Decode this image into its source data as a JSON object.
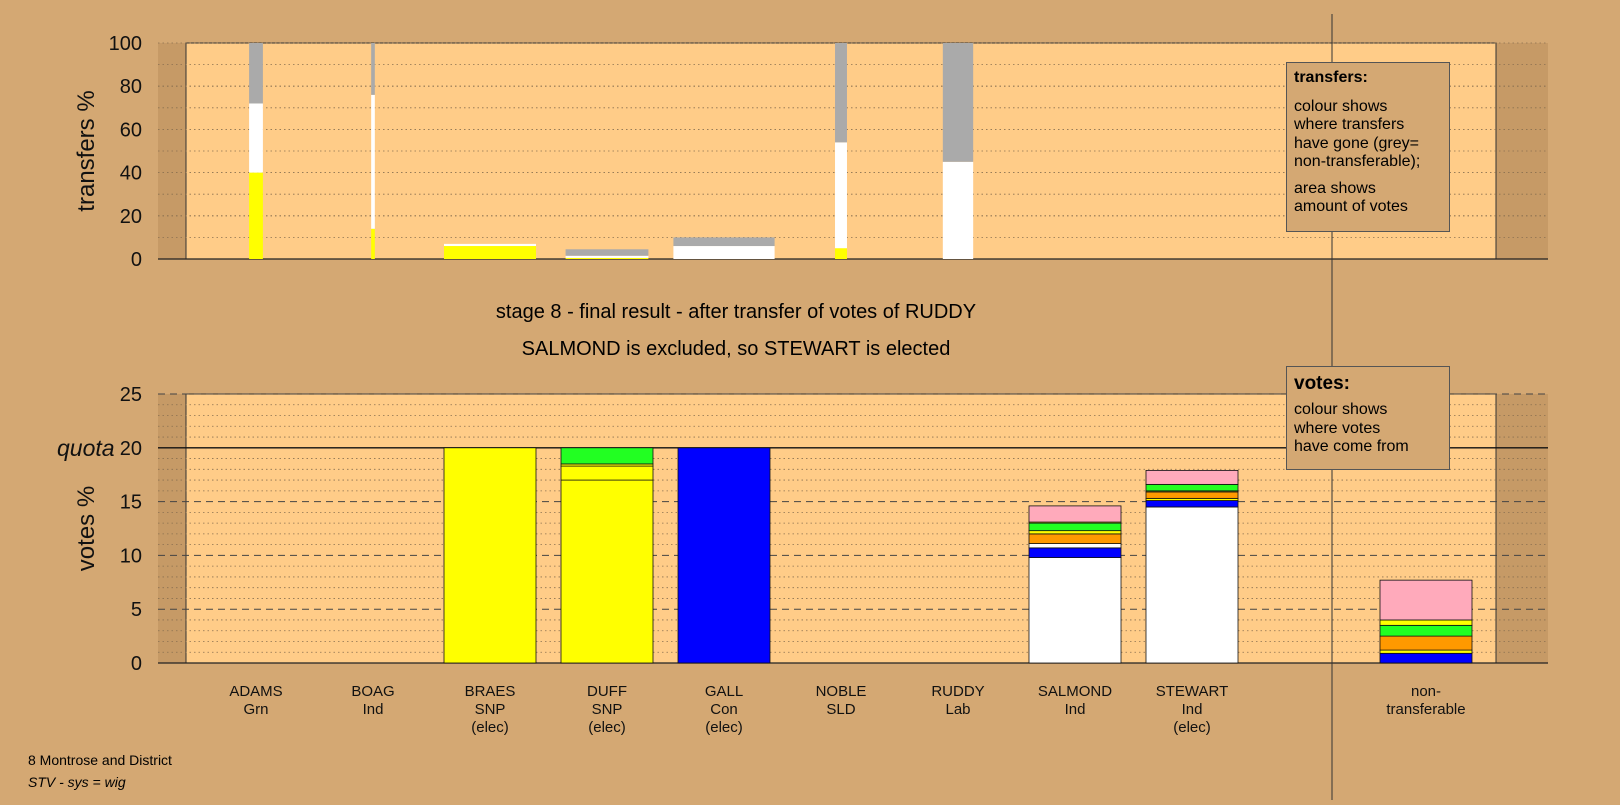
{
  "colors": {
    "background": "#d4a873",
    "panel": "#ffcc88",
    "SNP": "#ffff00",
    "Con": "#0000ff",
    "Grn": "#22ff22",
    "SLD": "#ff9900",
    "Lab": "#ffaabb",
    "Ind": "#ffffff",
    "non-transferable": "#aaaaaa"
  },
  "chart_data": [
    {
      "type": "bar",
      "name": "transfers",
      "ylabel": "transfers %",
      "ylim": [
        0,
        100
      ],
      "yticks": [
        0,
        20,
        40,
        60,
        80,
        100
      ],
      "grid": "dotted",
      "note": "bar width shows amount of votes",
      "columns": [
        {
          "candidate": "ADAMS",
          "width": 0.15,
          "segments": [
            {
              "party": "SNP",
              "value": 40
            },
            {
              "party": "Ind",
              "value": 32
            },
            {
              "party": "non-transferable",
              "value": 28
            }
          ]
        },
        {
          "candidate": "BOAG",
          "width": 0.04,
          "segments": [
            {
              "party": "SNP",
              "value": 14
            },
            {
              "party": "Ind",
              "value": 62
            },
            {
              "party": "non-transferable",
              "value": 24
            }
          ]
        },
        {
          "candidate": "BRAES",
          "width": 1.0,
          "segments": [
            {
              "party": "SNP",
              "value": 6
            },
            {
              "party": "Ind",
              "value": 1
            }
          ]
        },
        {
          "candidate": "DUFF",
          "width": 0.9,
          "segments": [
            {
              "party": "SNP",
              "value": 0.5
            },
            {
              "party": "Ind",
              "value": 1
            },
            {
              "party": "non-transferable",
              "value": 3
            }
          ]
        },
        {
          "candidate": "GALL",
          "width": 1.1,
          "segments": [
            {
              "party": "Ind",
              "value": 6
            },
            {
              "party": "non-transferable",
              "value": 4
            }
          ]
        },
        {
          "candidate": "NOBLE",
          "width": 0.13,
          "segments": [
            {
              "party": "SNP",
              "value": 5
            },
            {
              "party": "Ind",
              "value": 49
            },
            {
              "party": "non-transferable",
              "value": 46
            }
          ]
        },
        {
          "candidate": "RUDDY",
          "width": 0.33,
          "segments": [
            {
              "party": "Ind",
              "value": 45
            },
            {
              "party": "non-transferable",
              "value": 55
            }
          ]
        }
      ]
    },
    {
      "type": "bar",
      "name": "votes",
      "ylabel": "votes %",
      "ylim": [
        0,
        25
      ],
      "yticks": [
        0,
        5,
        10,
        15,
        20,
        25
      ],
      "quota": 20,
      "quota_label": "quota",
      "grid": "dotted",
      "columns": [
        {
          "candidate": "ADAMS",
          "party": "Grn",
          "elected": "",
          "segments": []
        },
        {
          "candidate": "BOAG",
          "party": "Ind",
          "elected": "",
          "segments": []
        },
        {
          "candidate": "BRAES",
          "party": "SNP",
          "elected": "(elec)",
          "segments": [
            {
              "party": "SNP",
              "value": 20
            }
          ]
        },
        {
          "candidate": "DUFF",
          "party": "SNP",
          "elected": "(elec)",
          "segments": [
            {
              "party": "SNP",
              "value": 17
            },
            {
              "party": "SNP",
              "value": 1.3
            },
            {
              "party": "SNP",
              "value": 0.2
            },
            {
              "party": "Grn",
              "value": 1.5
            }
          ]
        },
        {
          "candidate": "GALL",
          "party": "Con",
          "elected": "(elec)",
          "segments": [
            {
              "party": "Con",
              "value": 20
            }
          ]
        },
        {
          "candidate": "NOBLE",
          "party": "SLD",
          "elected": "",
          "segments": []
        },
        {
          "candidate": "RUDDY",
          "party": "Lab",
          "elected": "",
          "segments": []
        },
        {
          "candidate": "SALMOND",
          "party": "Ind",
          "elected": "",
          "segments": [
            {
              "party": "Ind",
              "value": 9.8
            },
            {
              "party": "Con",
              "value": 0.9
            },
            {
              "party": "Ind",
              "value": 0.4
            },
            {
              "party": "SLD",
              "value": 0.9
            },
            {
              "party": "SNP",
              "value": 0.3
            },
            {
              "party": "Grn",
              "value": 0.7
            },
            {
              "party": "SNP",
              "value": 0.1
            },
            {
              "party": "Lab",
              "value": 1.5
            }
          ]
        },
        {
          "candidate": "STEWART",
          "party": "Ind",
          "elected": "(elec)",
          "segments": [
            {
              "party": "Ind",
              "value": 14.5
            },
            {
              "party": "Con",
              "value": 0.6
            },
            {
              "party": "SNP",
              "value": 0.2
            },
            {
              "party": "SLD",
              "value": 0.6
            },
            {
              "party": "SNP",
              "value": 0.1
            },
            {
              "party": "Grn",
              "value": 0.6
            },
            {
              "party": "Lab",
              "value": 1.3
            }
          ]
        },
        {
          "candidate": "non-\ntransferable",
          "party": "",
          "elected": "",
          "segments": [
            {
              "party": "Con",
              "value": 0.9
            },
            {
              "party": "SNP",
              "value": 0.3
            },
            {
              "party": "SLD",
              "value": 1.3
            },
            {
              "party": "Grn",
              "value": 1.0
            },
            {
              "party": "SNP",
              "value": 0.5
            },
            {
              "party": "Lab",
              "value": 3.7
            }
          ]
        }
      ]
    }
  ],
  "stage_title": "stage 8 - final result - after transfer of votes of RUDDY",
  "stage_subtitle": "SALMOND is excluded, so STEWART is elected",
  "legends": {
    "transfers": {
      "title": "transfers:",
      "line1": "colour shows",
      "line2": "where transfers",
      "line3": "have gone (grey=",
      "line4": "non-transferable);",
      "line5": "area shows",
      "line6": "amount of votes"
    },
    "votes": {
      "title": "votes:",
      "line1": "colour shows",
      "line2": "where votes",
      "line3": "have come from"
    }
  },
  "footer": {
    "ward": "8 Montrose and District",
    "system": "STV - sys = wig"
  }
}
